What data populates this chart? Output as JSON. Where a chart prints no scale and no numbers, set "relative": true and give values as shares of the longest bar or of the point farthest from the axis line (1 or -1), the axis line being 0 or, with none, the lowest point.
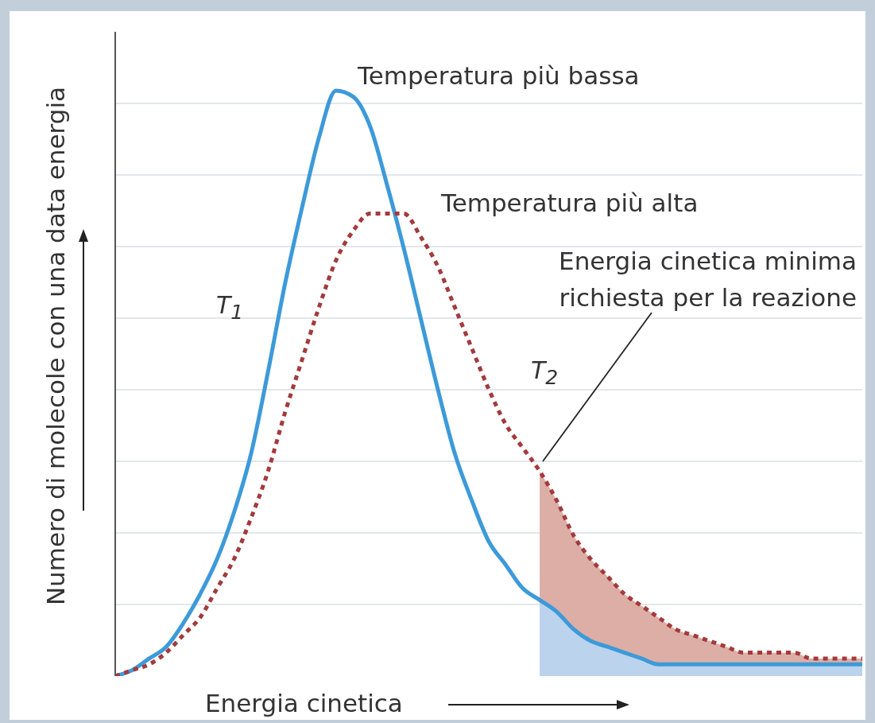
{
  "chart_data": {
    "type": "line",
    "relative": true,
    "grid": "y",
    "marker": "none",
    "xlabel": "Energia cinetica",
    "ylabel": "Numero di molecole con una data energia",
    "annotations": [
      "Temperatura più bassa",
      "Temperatura più alta",
      "Energia cinetica minima richiesta per la reazione"
    ],
    "categories": [
      null,
      null,
      null,
      null,
      null,
      null,
      null,
      null,
      null,
      null,
      null,
      null,
      null,
      null,
      null,
      null,
      null,
      null,
      null,
      null,
      null,
      null,
      null,
      null,
      null,
      null,
      null,
      null,
      null,
      null,
      null,
      null,
      null,
      null,
      null,
      null,
      null,
      null,
      null,
      null,
      null,
      null,
      null,
      null,
      null
    ],
    "series": [
      {
        "name": "T$_{1}$",
        "color": "#3d9ad9",
        "line_style": "solid",
        "values": [
          0,
          0.01,
          0.03,
          0.05,
          0.09,
          0.14,
          0.2,
          0.28,
          0.38,
          0.52,
          0.67,
          0.8,
          0.92,
          1,
          0.99,
          0.94,
          0.84,
          0.73,
          0.61,
          0.49,
          0.38,
          0.3,
          0.23,
          0.19,
          0.15,
          0.13,
          0.11,
          0.08,
          0.06,
          0.05,
          0.04,
          0.03,
          0.02,
          0.02,
          0.02,
          0.02,
          0.02,
          0.02,
          0.02,
          0.02,
          0.02,
          0.02,
          0.02,
          0.02,
          0.02
        ]
      },
      {
        "name": "T$_{2}$",
        "color": "#a33a3c",
        "line_style": "dotted",
        "values": [
          0,
          0.01,
          0.02,
          0.04,
          0.07,
          0.1,
          0.15,
          0.2,
          0.27,
          0.35,
          0.45,
          0.54,
          0.63,
          0.71,
          0.76,
          0.79,
          0.79,
          0.79,
          0.75,
          0.7,
          0.63,
          0.56,
          0.49,
          0.43,
          0.39,
          0.35,
          0.3,
          0.24,
          0.2,
          0.17,
          0.14,
          0.12,
          0.1,
          0.08,
          0.07,
          0.06,
          0.05,
          0.04,
          0.04,
          0.04,
          0.04,
          0.03,
          0.03,
          0.03,
          0.03
        ]
      },
      {
        "type": "area",
        "color": "#dcaea6",
        "values": [
          null,
          null,
          null,
          null,
          null,
          null,
          null,
          null,
          null,
          null,
          null,
          null,
          null,
          null,
          null,
          null,
          null,
          null,
          null,
          null,
          null,
          null,
          null,
          null,
          null,
          0.35,
          0.3,
          0.24,
          0.2,
          0.17,
          0.14,
          0.12,
          0.1,
          0.08,
          0.07,
          0.06,
          0.05,
          0.04,
          0.04,
          0.04,
          0.04,
          0.03,
          0.03,
          0.03,
          0.03
        ]
      },
      {
        "type": "area",
        "color": "#bcd3ee",
        "values": [
          null,
          null,
          null,
          null,
          null,
          null,
          null,
          null,
          null,
          null,
          null,
          null,
          null,
          null,
          null,
          null,
          null,
          null,
          null,
          null,
          null,
          null,
          null,
          null,
          null,
          0.13,
          0.11,
          0.08,
          0.06,
          0.05,
          0.04,
          0.03,
          0.02,
          0.02,
          0.02,
          0.02,
          0.02,
          0.02,
          0.02,
          0.02,
          0.02,
          0.02,
          0.02,
          0.02,
          0.02
        ]
      }
    ]
  }
}
